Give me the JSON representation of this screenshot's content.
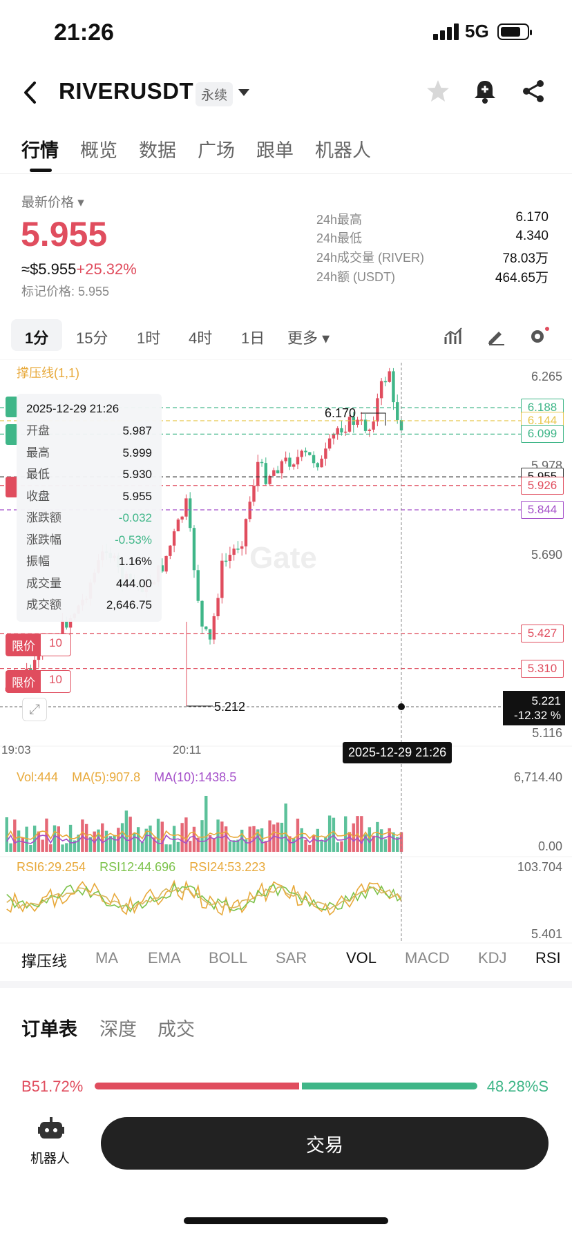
{
  "status": {
    "time": "21:26",
    "network": "5G"
  },
  "header": {
    "pair": "RIVERUSDT",
    "badge": "永续"
  },
  "tabs": [
    "行情",
    "概览",
    "数据",
    "广场",
    "跟单",
    "机器人"
  ],
  "ticker": {
    "latest_label": "最新价格",
    "price": "5.955",
    "usd_value": "≈$5.955",
    "change": "+25.32%",
    "mark_price": "标记价格: 5.955",
    "stats": [
      {
        "label": "24h最高",
        "value": "6.170"
      },
      {
        "label": "24h最低",
        "value": "4.340"
      },
      {
        "label": "24h成交量 (RIVER)",
        "value": "78.03万"
      },
      {
        "label": "24h额 (USDT)",
        "value": "464.65万"
      }
    ]
  },
  "timeframes": [
    "1分",
    "15分",
    "1时",
    "4时",
    "1日",
    "更多"
  ],
  "chart": {
    "indicator_label": "撑压线(1,1)",
    "watermark": "Gate",
    "tooltip": {
      "time": "2025-12-29 21:26",
      "rows": [
        {
          "k": "开盘",
          "v": "5.987"
        },
        {
          "k": "最高",
          "v": "5.999"
        },
        {
          "k": "最低",
          "v": "5.930"
        },
        {
          "k": "收盘",
          "v": "5.955"
        },
        {
          "k": "涨跌额",
          "v": "-0.032"
        },
        {
          "k": "涨跌幅",
          "v": "-0.53%"
        },
        {
          "k": "振幅",
          "v": "1.16%"
        },
        {
          "k": "成交量",
          "v": "444.00"
        },
        {
          "k": "成交额",
          "v": "2,646.75"
        }
      ]
    },
    "limit_tag": "限价",
    "limit_qty": "10",
    "high_label": "6.170",
    "low_label": "5.212",
    "crosshair_time": "2025-12-29 21:26",
    "crosshair_price": "5.221",
    "crosshair_pct": "-12.32 %",
    "x_ticks": [
      "19:03",
      "20:11"
    ],
    "vol_legend": {
      "vol": "Vol:444",
      "ma5": "MA(5):907.8",
      "ma10": "MA(10):1438.5"
    },
    "vol_axis": {
      "max": "6,714.40",
      "min": "0.00"
    },
    "rsi_legend": {
      "r6": "RSI6:29.254",
      "r12": "RSI12:44.696",
      "r24": "RSI24:53.223"
    },
    "rsi_axis": {
      "max": "103.704",
      "min": "5.401"
    },
    "colors": {
      "up": "#e04d5e",
      "down": "#3fb688"
    }
  },
  "chart_data": {
    "type": "candlestick",
    "y_axis_ticks": [
      "6.265",
      "5.978",
      "5.690",
      "5.116"
    ],
    "price_levels": [
      {
        "value": "6.188",
        "color": "#3fb688"
      },
      {
        "value": "6.144",
        "color": "#e8c64d"
      },
      {
        "value": "6.099",
        "color": "#3fb688"
      },
      {
        "value": "5.955",
        "color": "#333333"
      },
      {
        "value": "5.926",
        "color": "#e04d5e"
      },
      {
        "value": "5.844",
        "color": "#a44fc9"
      },
      {
        "value": "5.427",
        "color": "#e04d5e"
      },
      {
        "value": "5.310",
        "color": "#e04d5e"
      }
    ]
  },
  "indicators": [
    "撑压线",
    "MA",
    "EMA",
    "BOLL",
    "SAR",
    "VOL",
    "MACD",
    "KDJ",
    "RSI"
  ],
  "order": {
    "tabs": [
      "订单表",
      "深度",
      "成交"
    ],
    "buy_ratio": "B51.72%",
    "sell_ratio": "48.28%S"
  },
  "bottom": {
    "robot_label": "机器人",
    "trade_label": "交易"
  }
}
